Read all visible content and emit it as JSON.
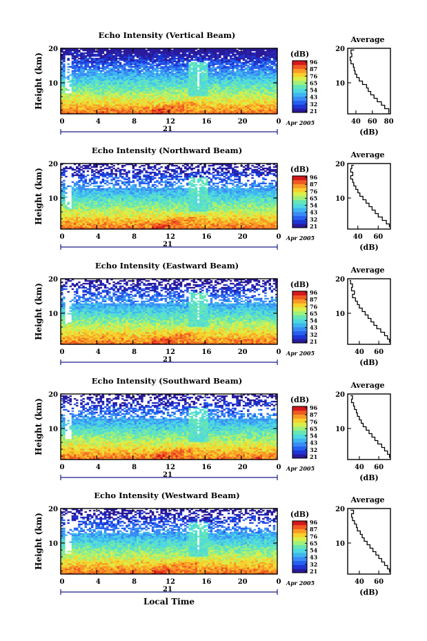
{
  "colors": {
    "colorbar": [
      "#2a1a9a",
      "#1d35d4",
      "#2660ee",
      "#3a8cf5",
      "#3fb6f0",
      "#4fd8e0",
      "#66e6b4",
      "#9ff07c",
      "#d9ef4a",
      "#f8d02c",
      "#f99a26",
      "#f05a22",
      "#d4181c"
    ]
  },
  "chart_data": [
    {
      "type": "heatmap",
      "title": "Echo Intensity (Vertical Beam)",
      "ylabel": "Height (km)",
      "xlabel": "",
      "x_ticks": [
        "0",
        "4",
        "8",
        "12",
        "16",
        "20",
        "0"
      ],
      "y_ticks": [
        "20",
        "10"
      ],
      "xlim": [
        0,
        24
      ],
      "ylim": [
        1,
        20
      ],
      "date_row": {
        "day": "21",
        "month_year": "Apr 2005"
      },
      "colorbar": {
        "unit": "(dB)",
        "levels": [
          "96",
          "87",
          "76",
          "65",
          "54",
          "43",
          "32",
          "21"
        ]
      },
      "white_gap_hour": 0.8,
      "feature_hour": 15.3,
      "average": {
        "title": "Average",
        "xlabel": "(dB)",
        "x_ticks": [
          "40",
          "60",
          "80"
        ],
        "xlim": [
          30,
          82
        ],
        "y_ticks": [
          "20",
          "10"
        ],
        "profile": [
          [
            1.5,
            80
          ],
          [
            2.5,
            75
          ],
          [
            3.5,
            71
          ],
          [
            4.5,
            66
          ],
          [
            5.5,
            62
          ],
          [
            6.5,
            58
          ],
          [
            7.5,
            55
          ],
          [
            8.5,
            53
          ],
          [
            9.5,
            48
          ],
          [
            10.5,
            44
          ],
          [
            11.5,
            41
          ],
          [
            12.5,
            39
          ],
          [
            13.5,
            38
          ],
          [
            14.5,
            37
          ],
          [
            15.5,
            34
          ],
          [
            16.5,
            33
          ],
          [
            17.5,
            35
          ],
          [
            18.5,
            34
          ],
          [
            19.5,
            38
          ]
        ]
      }
    },
    {
      "type": "heatmap",
      "title": "Echo Intensity (Northward Beam)",
      "ylabel": "Height (km)",
      "xlabel": "",
      "x_ticks": [
        "0",
        "4",
        "8",
        "12",
        "16",
        "20",
        "0"
      ],
      "y_ticks": [
        "20",
        "10"
      ],
      "xlim": [
        0,
        24
      ],
      "ylim": [
        1,
        20
      ],
      "date_row": {
        "day": "21",
        "month_year": "Apr 2005"
      },
      "colorbar": {
        "unit": "(dB)",
        "levels": [
          "96",
          "87",
          "76",
          "65",
          "54",
          "43",
          "32",
          "21"
        ]
      },
      "white_gap_hour": 0.8,
      "feature_hour": 15.3,
      "average": {
        "title": "Average",
        "xlabel": "(dB)",
        "x_ticks": [
          "40",
          "60"
        ],
        "xlim": [
          30,
          72
        ],
        "y_ticks": [
          "20",
          "10"
        ],
        "profile": [
          [
            1.5,
            71
          ],
          [
            2.5,
            68
          ],
          [
            3.5,
            64
          ],
          [
            4.5,
            60
          ],
          [
            5.5,
            57
          ],
          [
            6.5,
            54
          ],
          [
            7.5,
            51
          ],
          [
            8.5,
            48
          ],
          [
            9.5,
            45
          ],
          [
            10.5,
            42
          ],
          [
            11.5,
            40
          ],
          [
            12.5,
            38
          ],
          [
            13.5,
            36
          ],
          [
            14.5,
            35
          ],
          [
            15.5,
            33
          ],
          [
            16.5,
            35
          ],
          [
            17.5,
            33
          ],
          [
            18.5,
            34
          ],
          [
            19.5,
            36
          ]
        ]
      }
    },
    {
      "type": "heatmap",
      "title": "Echo Intensity (Eastward Beam)",
      "ylabel": "Height (km)",
      "xlabel": "",
      "x_ticks": [
        "0",
        "4",
        "8",
        "12",
        "16",
        "20",
        "0"
      ],
      "y_ticks": [
        "20",
        "10"
      ],
      "xlim": [
        0,
        24
      ],
      "ylim": [
        1,
        20
      ],
      "date_row": {
        "day": "21",
        "month_year": "Apr 2005"
      },
      "colorbar": {
        "unit": "(dB)",
        "levels": [
          "96",
          "87",
          "76",
          "65",
          "54",
          "43",
          "32",
          "21"
        ]
      },
      "white_gap_hour": 0.8,
      "feature_hour": 15.3,
      "average": {
        "title": "Average",
        "xlabel": "(dB)",
        "x_ticks": [
          "40",
          "60"
        ],
        "xlim": [
          28,
          72
        ],
        "y_ticks": [
          "20",
          "10"
        ],
        "profile": [
          [
            1.5,
            71
          ],
          [
            2.5,
            69
          ],
          [
            3.5,
            66
          ],
          [
            4.5,
            62
          ],
          [
            5.5,
            58
          ],
          [
            6.5,
            55
          ],
          [
            7.5,
            52
          ],
          [
            8.5,
            49
          ],
          [
            9.5,
            46
          ],
          [
            10.5,
            43
          ],
          [
            11.5,
            40
          ],
          [
            12.5,
            38
          ],
          [
            13.5,
            36
          ],
          [
            14.5,
            33
          ],
          [
            15.5,
            35
          ],
          [
            16.5,
            32
          ],
          [
            17.5,
            33
          ],
          [
            18.5,
            31
          ],
          [
            19.5,
            30
          ]
        ]
      }
    },
    {
      "type": "heatmap",
      "title": "Echo Intensity (Southward Beam)",
      "ylabel": "Height (km)",
      "xlabel": "",
      "x_ticks": [
        "0",
        "4",
        "8",
        "12",
        "16",
        "20",
        "0"
      ],
      "y_ticks": [
        "20",
        "10"
      ],
      "xlim": [
        0,
        24
      ],
      "ylim": [
        1,
        20
      ],
      "date_row": {
        "day": "21",
        "month_year": "Apr 2005"
      },
      "colorbar": {
        "unit": "(dB)",
        "levels": [
          "96",
          "87",
          "76",
          "65",
          "54",
          "43",
          "32",
          "21"
        ]
      },
      "white_gap_hour": 0.8,
      "feature_hour": 15.3,
      "average": {
        "title": "Average",
        "xlabel": "(dB)",
        "x_ticks": [
          "40",
          "60"
        ],
        "xlim": [
          28,
          72
        ],
        "y_ticks": [
          "20",
          "10"
        ],
        "profile": [
          [
            1.5,
            71
          ],
          [
            2.5,
            69
          ],
          [
            3.5,
            66
          ],
          [
            4.5,
            63
          ],
          [
            5.5,
            59
          ],
          [
            6.5,
            56
          ],
          [
            7.5,
            53
          ],
          [
            8.5,
            50
          ],
          [
            9.5,
            47
          ],
          [
            10.5,
            44
          ],
          [
            11.5,
            42
          ],
          [
            12.5,
            40
          ],
          [
            13.5,
            38
          ],
          [
            14.5,
            37
          ],
          [
            15.5,
            35
          ],
          [
            16.5,
            34
          ],
          [
            17.5,
            32
          ],
          [
            18.5,
            33
          ],
          [
            19.5,
            31
          ]
        ]
      }
    },
    {
      "type": "heatmap",
      "title": "Echo Intensity (Westward Beam)",
      "ylabel": "Height (km)",
      "xlabel": "Local Time",
      "x_ticks": [
        "0",
        "4",
        "8",
        "12",
        "16",
        "20",
        "0"
      ],
      "y_ticks": [
        "20",
        "10"
      ],
      "xlim": [
        0,
        24
      ],
      "ylim": [
        1,
        20
      ],
      "date_row": {
        "day": "21",
        "month_year": "Apr 2005"
      },
      "colorbar": {
        "unit": "(dB)",
        "levels": [
          "96",
          "87",
          "76",
          "65",
          "54",
          "43",
          "32",
          "21"
        ]
      },
      "white_gap_hour": 0.8,
      "feature_hour": 15.3,
      "average": {
        "title": "Average",
        "xlabel": "(dB)",
        "x_ticks": [
          "40",
          "60"
        ],
        "xlim": [
          28,
          72
        ],
        "y_ticks": [
          "20",
          "10"
        ],
        "profile": [
          [
            1.5,
            71
          ],
          [
            2.5,
            69
          ],
          [
            3.5,
            66
          ],
          [
            4.5,
            63
          ],
          [
            5.5,
            60
          ],
          [
            6.5,
            57
          ],
          [
            7.5,
            54
          ],
          [
            8.5,
            51
          ],
          [
            9.5,
            48
          ],
          [
            10.5,
            45
          ],
          [
            11.5,
            43
          ],
          [
            12.5,
            41
          ],
          [
            13.5,
            38
          ],
          [
            14.5,
            37
          ],
          [
            15.5,
            35
          ],
          [
            16.5,
            33
          ],
          [
            17.5,
            32
          ],
          [
            18.5,
            34
          ],
          [
            19.5,
            31
          ]
        ]
      }
    }
  ]
}
